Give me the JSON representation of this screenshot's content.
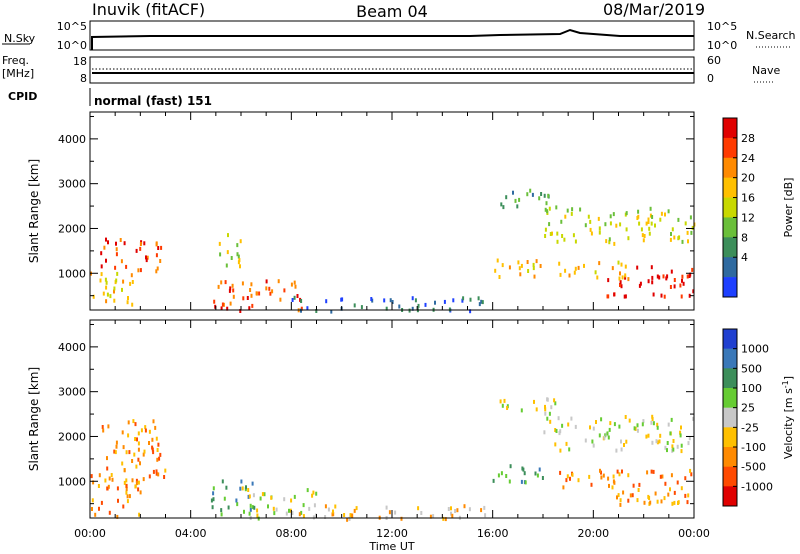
{
  "header": {
    "site": "Inuvik (fitACF)",
    "beam": "Beam 04",
    "date": "08/Mar/2019"
  },
  "strips": {
    "nsky_label": "N.Sky",
    "nsky_ticks": [
      "10^5",
      "10^0"
    ],
    "nsearch_label": "N.Search",
    "nsearch_ticks": [
      "10^5",
      "10^0"
    ],
    "freq_label": "Freq.",
    "freq_unit": "[MHz]",
    "freq_ticks": [
      "18",
      "8"
    ],
    "nave_label": "Nave",
    "nave_ticks": [
      "60",
      "0"
    ],
    "cpid_label": "CPID",
    "cpid_value": "normal (fast) 151"
  },
  "chart_data": [
    {
      "type": "heatmap",
      "name": "power",
      "ylabel": "Slant Range [km]",
      "xlabel": "Time UT",
      "x_ticks": [
        "00:00",
        "04:00",
        "08:00",
        "12:00",
        "16:00",
        "20:00",
        "00:00"
      ],
      "xlim_hours": [
        0,
        24
      ],
      "y_ticks": [
        1000,
        2000,
        3000,
        4000
      ],
      "ylim": [
        180,
        4600
      ],
      "colorbar": {
        "label": "Power [dB]",
        "ticks": [
          "28",
          "24",
          "20",
          "16",
          "12",
          "8",
          "4"
        ],
        "colors": [
          "#e00000",
          "#ff3a00",
          "#ff8a00",
          "#ffc000",
          "#c8d800",
          "#6abf3a",
          "#3c8e5a",
          "#2f6aa0",
          "#1e40ff"
        ]
      },
      "regions": [
        {
          "t": [
            0.0,
            1.8
          ],
          "r": [
            300,
            1100
          ],
          "level": 3
        },
        {
          "t": [
            0.4,
            2.9
          ],
          "r": [
            1000,
            1800
          ],
          "level": 1
        },
        {
          "t": [
            4.8,
            8.4
          ],
          "r": [
            200,
            900
          ],
          "level": 1
        },
        {
          "t": [
            5.0,
            6.0
          ],
          "r": [
            1200,
            2000
          ],
          "level": 4
        },
        {
          "t": [
            8.0,
            15.8
          ],
          "r": [
            180,
            500
          ],
          "level": 7
        },
        {
          "t": [
            15.8,
            18.0
          ],
          "r": [
            950,
            1400
          ],
          "level": 3
        },
        {
          "t": [
            16.0,
            18.5
          ],
          "r": [
            2500,
            2900
          ],
          "level": 6
        },
        {
          "t": [
            18.0,
            24.0
          ],
          "r": [
            1700,
            2500
          ],
          "level": 4
        },
        {
          "t": [
            20.5,
            24.0
          ],
          "r": [
            500,
            1200
          ],
          "level": 0
        },
        {
          "t": [
            18.5,
            21.5
          ],
          "r": [
            900,
            1300
          ],
          "level": 3
        }
      ]
    },
    {
      "type": "heatmap",
      "name": "velocity",
      "ylabel": "Slant Range [km]",
      "xlabel": "Time UT",
      "x_ticks": [
        "00:00",
        "04:00",
        "08:00",
        "12:00",
        "16:00",
        "20:00",
        "00:00"
      ],
      "xlim_hours": [
        0,
        24
      ],
      "y_ticks": [
        1000,
        2000,
        3000,
        4000
      ],
      "ylim": [
        180,
        4600
      ],
      "colorbar": {
        "label": "Velocity [m s",
        "label_sup": "-1",
        "label_end": "]",
        "ticks": [
          "1000",
          "500",
          "100",
          "25",
          "-25",
          "-100",
          "-500",
          "-1000"
        ],
        "colors": [
          "#2040d0",
          "#3a78b8",
          "#3c8e5a",
          "#66cc33",
          "#c8c8c8",
          "#ffc000",
          "#ff8a00",
          "#ff4a00",
          "#e00000"
        ]
      },
      "regions": [
        {
          "t": [
            0.0,
            2.0
          ],
          "r": [
            200,
            1200
          ],
          "level": 6
        },
        {
          "t": [
            0.3,
            3.0
          ],
          "r": [
            1000,
            2400
          ],
          "level": 6
        },
        {
          "t": [
            4.8,
            6.5
          ],
          "r": [
            300,
            1100
          ],
          "level": 2
        },
        {
          "t": [
            6.0,
            9.0
          ],
          "r": [
            200,
            900
          ],
          "level": 4
        },
        {
          "t": [
            8.0,
            15.8
          ],
          "r": [
            180,
            500
          ],
          "level": 5
        },
        {
          "t": [
            15.8,
            18.0
          ],
          "r": [
            950,
            1400
          ],
          "level": 2
        },
        {
          "t": [
            16.0,
            18.5
          ],
          "r": [
            2500,
            2900
          ],
          "level": 4
        },
        {
          "t": [
            18.0,
            24.0
          ],
          "r": [
            1700,
            2500
          ],
          "level": 4
        },
        {
          "t": [
            20.5,
            24.0
          ],
          "r": [
            500,
            1300
          ],
          "level": 6
        },
        {
          "t": [
            18.5,
            21.5
          ],
          "r": [
            900,
            1300
          ],
          "level": 6
        }
      ]
    }
  ]
}
